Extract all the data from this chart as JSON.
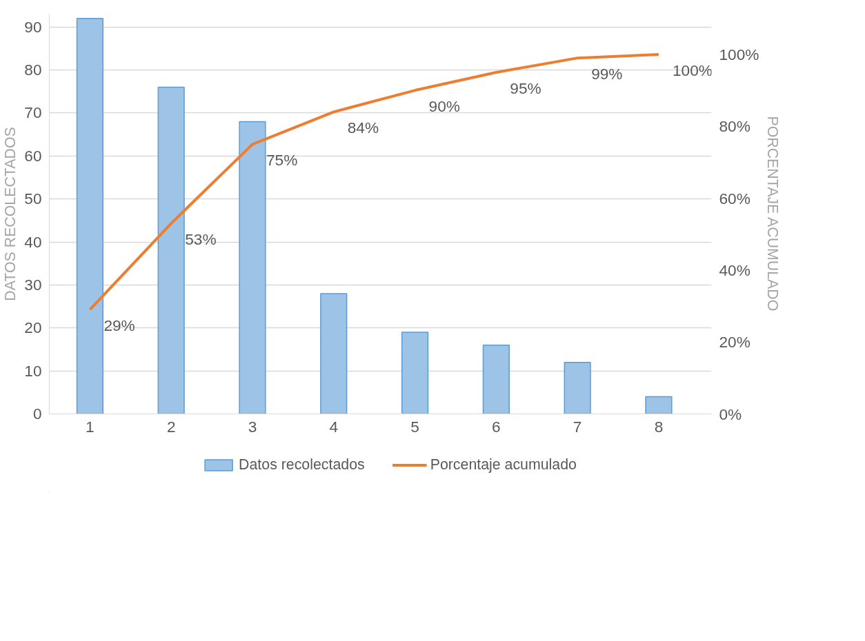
{
  "chart_data": {
    "type": "bar",
    "ylabel": "DATOS RECOLECTADOS",
    "y2label": "PORCENTAJE ACUMULADO",
    "categories": [
      "1",
      "2",
      "3",
      "4",
      "5",
      "6",
      "7",
      "8"
    ],
    "series": [
      {
        "name": "Datos recolectados",
        "color": "#9dc3e6",
        "values": [
          92,
          76,
          68,
          28,
          19,
          16,
          12,
          4
        ]
      },
      {
        "name": "Porcentaje acumulado",
        "type": "line",
        "axis": "y2",
        "color": "#ed7d31",
        "values": [
          29,
          53,
          75,
          84,
          90,
          95,
          99,
          100
        ],
        "value_labels": [
          "29%",
          "53%",
          "75%",
          "84%",
          "90%",
          "95%",
          "99%",
          "100%"
        ]
      }
    ],
    "ylim": [
      0,
      93
    ],
    "yticks": [
      0,
      10,
      20,
      30,
      40,
      50,
      60,
      70,
      80,
      90
    ],
    "y2lim": [
      0,
      111.2
    ],
    "y2ticks": [
      {
        "value": 0,
        "label": "0%"
      },
      {
        "value": 20,
        "label": "20%"
      },
      {
        "value": 40,
        "label": "40%"
      },
      {
        "value": 60,
        "label": "60%"
      },
      {
        "value": 80,
        "label": "80%"
      },
      {
        "value": 100,
        "label": "100%"
      }
    ],
    "grid": "y",
    "legend": "bottom"
  }
}
